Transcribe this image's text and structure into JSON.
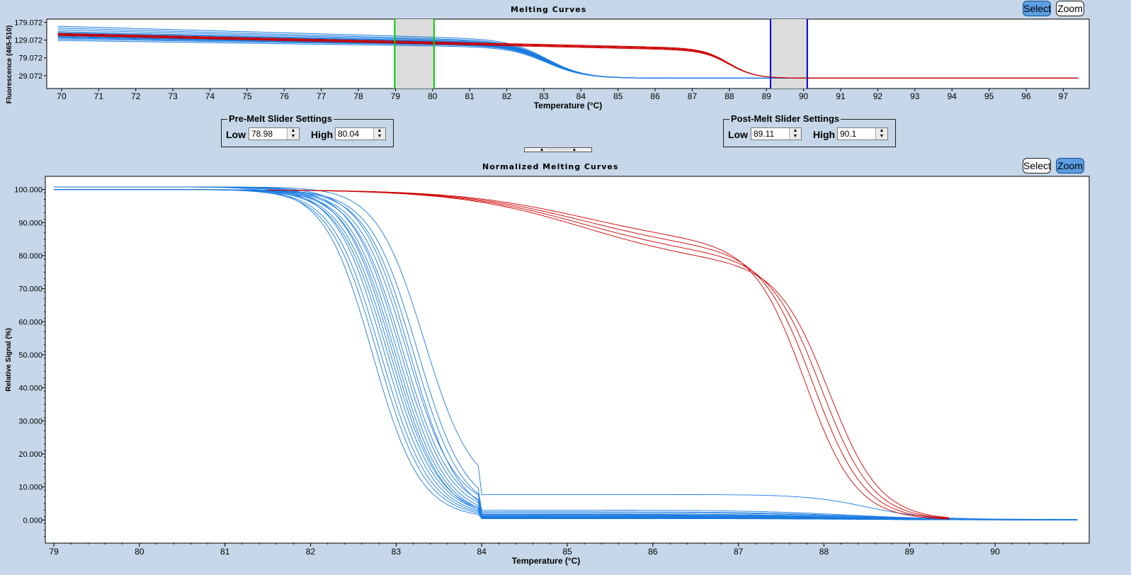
{
  "top_chart": {
    "title": "Melting Curves",
    "select_label": "Select",
    "zoom_label": "Zoom",
    "active_mode": "Select",
    "ylabel": "Fluorescence (465-510)",
    "xlabel": "Temperature (°C)",
    "y_ticks": [
      "179.072",
      "129.072",
      "79.072",
      "29.072"
    ],
    "x_ticks": [
      "70",
      "71",
      "72",
      "73",
      "74",
      "75",
      "76",
      "77",
      "78",
      "79",
      "80",
      "81",
      "82",
      "83",
      "84",
      "85",
      "86",
      "87",
      "88",
      "89",
      "90",
      "91",
      "92",
      "93",
      "94",
      "95",
      "96",
      "97"
    ],
    "premelt_lines_color": "#00cc00",
    "postmelt_lines_color": "#0000cc"
  },
  "premelt": {
    "legend": "Pre-Melt Slider Settings",
    "low_label": "Low",
    "low_value": "78.98",
    "high_label": "High",
    "high_value": "80.04"
  },
  "postmelt": {
    "legend": "Post-Melt Slider Settings",
    "low_label": "Low",
    "low_value": "89.11",
    "high_label": "High",
    "high_value": "90.1"
  },
  "splitter": {
    "glyph": "▲ ··············· ▲"
  },
  "bottom_chart": {
    "title": "Normalized Melting Curves",
    "select_label": "Select",
    "zoom_label": "Zoom",
    "active_mode": "Zoom",
    "ylabel": "Relative Signal (%)",
    "xlabel": "Temperature (°C)",
    "y_ticks": [
      "100.000",
      "90.000",
      "80.000",
      "70.000",
      "60.000",
      "50.000",
      "40.000",
      "30.000",
      "20.000",
      "10.000",
      "0.000"
    ],
    "x_ticks": [
      "79",
      "80",
      "81",
      "82",
      "83",
      "84",
      "85",
      "86",
      "87",
      "88",
      "89",
      "90"
    ]
  },
  "chart_data": [
    {
      "type": "line",
      "title": "Melting Curves",
      "xlabel": "Temperature (°C)",
      "ylabel": "Fluorescence (465-510)",
      "xlim": [
        69.6,
        97.7
      ],
      "ylim": [
        -7,
        188
      ],
      "premelt_range": [
        78.98,
        80.04
      ],
      "postmelt_range": [
        89.11,
        90.1
      ],
      "series_groups": [
        {
          "color": "#1a7be0",
          "tm": 83.1,
          "post_plateau": 22,
          "width": 0.5,
          "count": 14,
          "start_values": [
            168,
            163,
            158,
            153,
            150,
            147,
            145,
            143,
            141,
            139,
            137,
            135,
            132,
            128
          ],
          "mid_values": [
            128,
            124,
            122,
            120,
            119,
            118,
            117,
            116,
            115,
            114,
            113,
            112,
            111,
            108
          ]
        },
        {
          "color": "#cc0000",
          "tm": 88.0,
          "post_plateau": 22,
          "width": 0.35,
          "count": 4,
          "start_values": [
            148,
            146,
            144,
            142
          ],
          "mid_values": [
            105,
            103,
            101,
            99
          ]
        }
      ]
    },
    {
      "type": "line",
      "title": "Normalized Melting Curves",
      "xlabel": "Temperature (°C)",
      "ylabel": "Relative Signal (%)",
      "xlim": [
        78.9,
        91.1
      ],
      "ylim": [
        -7,
        104
      ],
      "series_groups": [
        {
          "color": "#1a7be0",
          "count": 16,
          "tm_values": [
            82.72,
            82.78,
            82.82,
            82.86,
            82.9,
            82.93,
            82.96,
            82.99,
            83.02,
            83.05,
            83.08,
            83.12,
            83.16,
            83.2,
            83.25,
            83.33
          ],
          "tail_values": [
            0.5,
            0.7,
            0.9,
            1.0,
            1.2,
            1.4,
            0.6,
            0.8,
            1.1,
            1.6,
            2.2,
            3.0,
            0.4,
            1.8,
            2.5,
            7.5
          ]
        },
        {
          "color": "#cc0000",
          "count": 4,
          "plateau_values": [
            83,
            81,
            79,
            77
          ],
          "tm_values": [
            87.78,
            87.88,
            87.97,
            88.06
          ]
        }
      ]
    }
  ]
}
